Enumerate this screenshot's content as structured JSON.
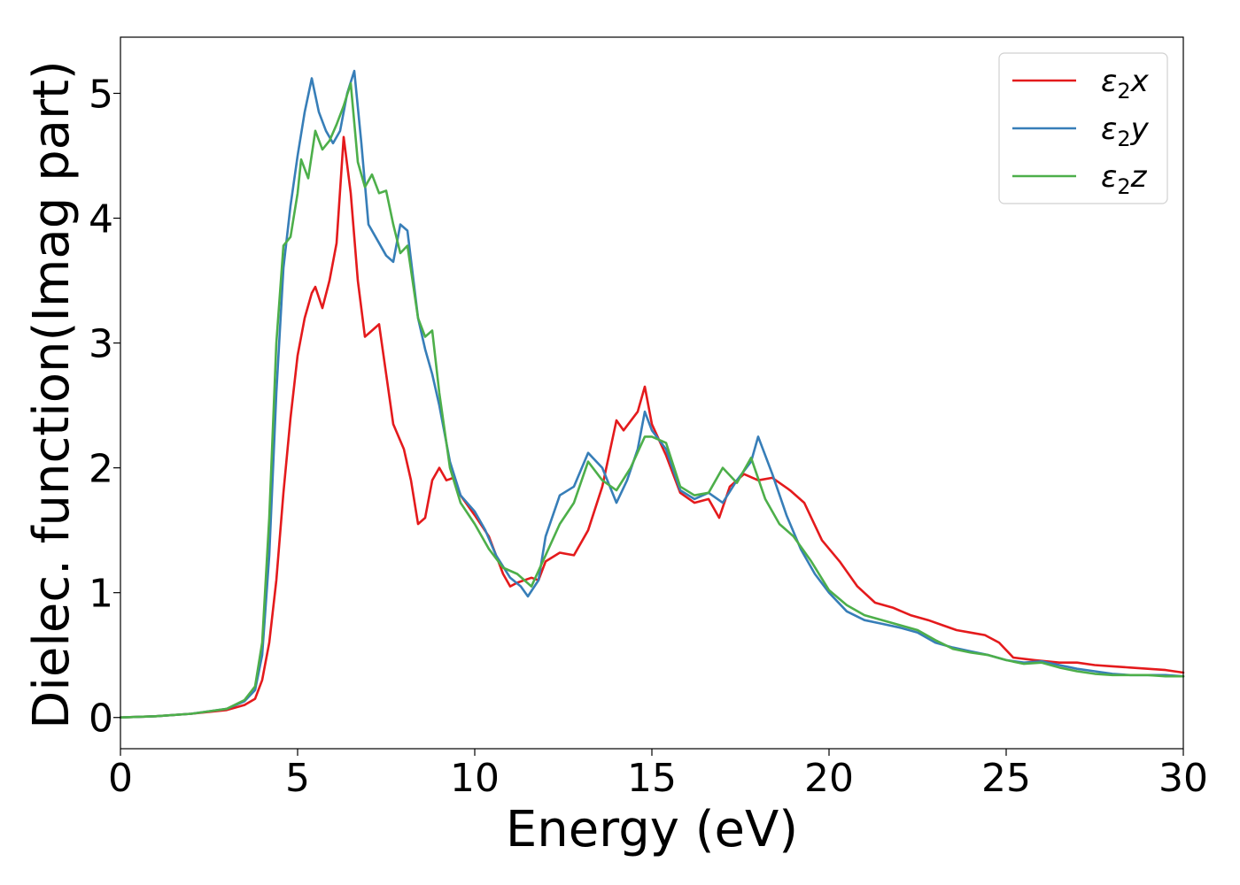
{
  "chart_data": {
    "type": "line",
    "xlabel": "Energy (eV)",
    "ylabel": "Dielec. function(Imag part)",
    "xlim": [
      0,
      30
    ],
    "ylim": [
      -0.25,
      5.45
    ],
    "xticks": [
      0,
      5,
      10,
      15,
      20,
      25,
      30
    ],
    "yticks": [
      0,
      1,
      2,
      3,
      4,
      5
    ],
    "grid": false,
    "legend_position": "top-right",
    "series": [
      {
        "name": "ε2x",
        "legend_base": "ε",
        "legend_sub": "2",
        "legend_var": "x",
        "color": "#e41a1c",
        "x": [
          0,
          1,
          2,
          3,
          3.5,
          3.8,
          4.0,
          4.2,
          4.4,
          4.6,
          4.8,
          5.0,
          5.2,
          5.4,
          5.5,
          5.7,
          5.9,
          6.1,
          6.3,
          6.5,
          6.7,
          6.9,
          7.1,
          7.3,
          7.5,
          7.7,
          8.0,
          8.2,
          8.4,
          8.6,
          8.8,
          9.0,
          9.2,
          9.4,
          9.6,
          10.0,
          10.4,
          10.8,
          11.0,
          11.2,
          11.6,
          11.8,
          12.0,
          12.4,
          12.8,
          13.2,
          13.6,
          14.0,
          14.2,
          14.6,
          14.8,
          15.0,
          15.4,
          15.8,
          16.2,
          16.6,
          16.9,
          17.2,
          17.6,
          18.0,
          18.4,
          18.9,
          19.3,
          19.8,
          20.3,
          20.8,
          21.3,
          21.8,
          22.3,
          22.8,
          23.2,
          23.6,
          24.0,
          24.4,
          24.8,
          25.2,
          25.8,
          26.5,
          27.0,
          27.5,
          28.0,
          28.5,
          29.0,
          29.5,
          30
        ],
        "y": [
          0,
          0.01,
          0.03,
          0.06,
          0.1,
          0.15,
          0.3,
          0.6,
          1.1,
          1.8,
          2.4,
          2.9,
          3.2,
          3.4,
          3.45,
          3.28,
          3.5,
          3.8,
          4.65,
          4.2,
          3.5,
          3.05,
          3.1,
          3.15,
          2.75,
          2.35,
          2.15,
          1.9,
          1.55,
          1.6,
          1.9,
          2.0,
          1.9,
          1.92,
          1.78,
          1.62,
          1.45,
          1.15,
          1.05,
          1.08,
          1.12,
          1.1,
          1.25,
          1.32,
          1.3,
          1.5,
          1.85,
          2.38,
          2.3,
          2.45,
          2.65,
          2.35,
          2.1,
          1.8,
          1.72,
          1.75,
          1.6,
          1.85,
          1.95,
          1.9,
          1.92,
          1.82,
          1.72,
          1.42,
          1.25,
          1.05,
          0.92,
          0.88,
          0.82,
          0.78,
          0.74,
          0.7,
          0.68,
          0.66,
          0.6,
          0.48,
          0.46,
          0.44,
          0.44,
          0.42,
          0.41,
          0.4,
          0.39,
          0.38,
          0.36
        ]
      },
      {
        "name": "ε2y",
        "legend_base": "ε",
        "legend_sub": "2",
        "legend_var": "y",
        "color": "#377eb8",
        "x": [
          0,
          1,
          2,
          3,
          3.5,
          3.8,
          4.0,
          4.2,
          4.4,
          4.6,
          4.8,
          5.0,
          5.2,
          5.4,
          5.6,
          5.8,
          6.0,
          6.2,
          6.4,
          6.6,
          6.8,
          7.0,
          7.3,
          7.5,
          7.7,
          7.9,
          8.1,
          8.4,
          8.6,
          8.8,
          9.0,
          9.3,
          9.6,
          10.0,
          10.3,
          10.6,
          11.0,
          11.3,
          11.5,
          11.8,
          12.0,
          12.4,
          12.8,
          13.2,
          13.6,
          14.0,
          14.3,
          14.6,
          14.8,
          15.0,
          15.4,
          15.8,
          16.2,
          16.6,
          17.0,
          17.4,
          17.8,
          18.0,
          18.4,
          18.8,
          19.2,
          19.6,
          20.0,
          20.5,
          21.0,
          21.5,
          22.0,
          22.5,
          23.0,
          23.5,
          24.0,
          24.5,
          25.0,
          25.5,
          26.0,
          26.5,
          27.0,
          27.5,
          28.0,
          28.5,
          29.0,
          29.5,
          30
        ],
        "y": [
          0,
          0.01,
          0.03,
          0.07,
          0.13,
          0.22,
          0.5,
          1.3,
          2.6,
          3.6,
          4.1,
          4.5,
          4.85,
          5.12,
          4.85,
          4.7,
          4.6,
          4.7,
          5.0,
          5.18,
          4.6,
          3.95,
          3.8,
          3.7,
          3.65,
          3.95,
          3.9,
          3.2,
          2.95,
          2.75,
          2.5,
          2.05,
          1.78,
          1.65,
          1.5,
          1.3,
          1.12,
          1.05,
          0.97,
          1.1,
          1.45,
          1.78,
          1.85,
          2.12,
          2.0,
          1.72,
          1.9,
          2.15,
          2.45,
          2.3,
          2.15,
          1.82,
          1.75,
          1.8,
          1.72,
          1.9,
          2.05,
          2.25,
          1.95,
          1.62,
          1.35,
          1.15,
          1.0,
          0.85,
          0.78,
          0.75,
          0.72,
          0.68,
          0.6,
          0.56,
          0.53,
          0.5,
          0.46,
          0.44,
          0.45,
          0.42,
          0.39,
          0.37,
          0.35,
          0.34,
          0.34,
          0.34,
          0.33
        ]
      },
      {
        "name": "ε2z",
        "legend_base": "ε",
        "legend_sub": "2",
        "legend_var": "z",
        "color": "#4daf4a",
        "x": [
          0,
          1,
          2,
          3,
          3.5,
          3.8,
          4.0,
          4.2,
          4.4,
          4.6,
          4.8,
          5.0,
          5.1,
          5.3,
          5.5,
          5.7,
          5.9,
          6.1,
          6.3,
          6.5,
          6.7,
          6.9,
          7.1,
          7.3,
          7.5,
          7.7,
          7.9,
          8.1,
          8.4,
          8.6,
          8.8,
          9.0,
          9.3,
          9.6,
          10.0,
          10.4,
          10.8,
          11.2,
          11.6,
          12.0,
          12.4,
          12.8,
          13.2,
          13.6,
          14.0,
          14.4,
          14.8,
          15.0,
          15.4,
          15.8,
          16.2,
          16.6,
          17.0,
          17.4,
          17.8,
          18.2,
          18.6,
          19.0,
          19.5,
          20.0,
          20.5,
          21.0,
          21.5,
          22.0,
          22.5,
          23.0,
          23.5,
          24.0,
          24.5,
          25.0,
          25.5,
          26.0,
          26.5,
          27.0,
          27.5,
          28.0,
          28.5,
          29.0,
          29.5,
          30
        ],
        "y": [
          0,
          0.01,
          0.03,
          0.07,
          0.14,
          0.25,
          0.6,
          1.6,
          3.0,
          3.78,
          3.85,
          4.2,
          4.47,
          4.32,
          4.7,
          4.55,
          4.62,
          4.75,
          4.9,
          5.08,
          4.45,
          4.25,
          4.35,
          4.2,
          4.22,
          3.95,
          3.72,
          3.78,
          3.2,
          3.05,
          3.1,
          2.6,
          2.0,
          1.72,
          1.55,
          1.35,
          1.2,
          1.15,
          1.05,
          1.3,
          1.55,
          1.72,
          2.05,
          1.9,
          1.82,
          2.0,
          2.25,
          2.25,
          2.2,
          1.85,
          1.78,
          1.8,
          2.0,
          1.88,
          2.08,
          1.75,
          1.55,
          1.45,
          1.25,
          1.02,
          0.9,
          0.82,
          0.78,
          0.74,
          0.7,
          0.62,
          0.55,
          0.52,
          0.5,
          0.46,
          0.43,
          0.44,
          0.4,
          0.37,
          0.35,
          0.34,
          0.34,
          0.34,
          0.33,
          0.33
        ]
      }
    ]
  }
}
